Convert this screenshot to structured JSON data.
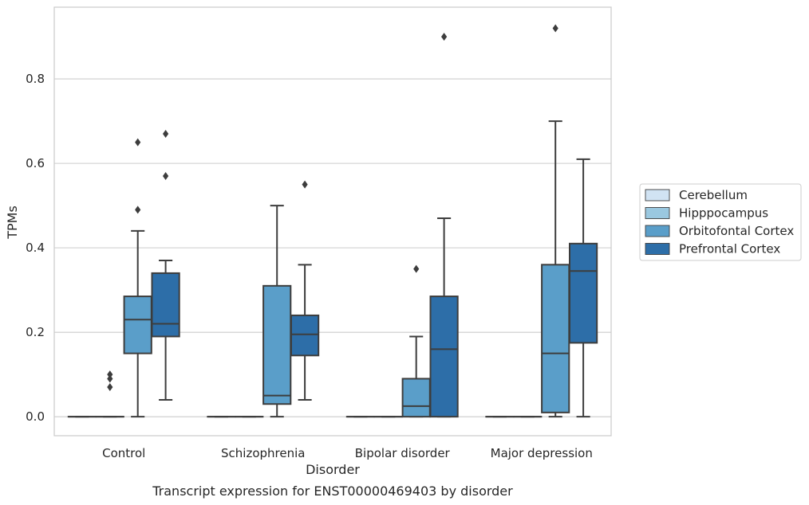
{
  "chart_data": {
    "type": "box",
    "xlabel": "Disorder",
    "ylabel": "TPMs",
    "caption": "Transcript expression for ENST00000469403 by disorder",
    "ylim": [
      -0.045,
      0.97
    ],
    "yticks": [
      0.0,
      0.2,
      0.4,
      0.6,
      0.8
    ],
    "ytick_labels": [
      "0.0",
      "0.2",
      "0.4",
      "0.6",
      "0.8"
    ],
    "grid": "horizontal",
    "legend_position": "right",
    "categories": [
      "Control",
      "Schizophrenia",
      "Bipolar disorder",
      "Major depression"
    ],
    "series": [
      {
        "name": "Cerebellum",
        "color": "#d1e3f3",
        "boxes": [
          {
            "min": 0,
            "q1": 0,
            "median": 0,
            "q3": 0,
            "max": 0,
            "outliers": []
          },
          {
            "min": 0,
            "q1": 0,
            "median": 0,
            "q3": 0,
            "max": 0,
            "outliers": []
          },
          {
            "min": 0,
            "q1": 0,
            "median": 0,
            "q3": 0,
            "max": 0,
            "outliers": []
          },
          {
            "min": 0,
            "q1": 0,
            "median": 0,
            "q3": 0,
            "max": 0,
            "outliers": []
          }
        ]
      },
      {
        "name": "Hipppocampus",
        "color": "#9ac8e0",
        "boxes": [
          {
            "min": 0,
            "q1": 0,
            "median": 0,
            "q3": 0,
            "max": 0,
            "outliers": [
              0.07,
              0.09,
              0.1
            ]
          },
          {
            "min": 0,
            "q1": 0,
            "median": 0,
            "q3": 0,
            "max": 0,
            "outliers": []
          },
          {
            "min": 0,
            "q1": 0,
            "median": 0,
            "q3": 0,
            "max": 0,
            "outliers": []
          },
          {
            "min": 0,
            "q1": 0,
            "median": 0,
            "q3": 0,
            "max": 0,
            "outliers": []
          }
        ]
      },
      {
        "name": "Orbitofontal Cortex",
        "color": "#5a9ec9",
        "boxes": [
          {
            "min": 0,
            "q1": 0.15,
            "median": 0.23,
            "q3": 0.285,
            "max": 0.44,
            "outliers": [
              0.49,
              0.65
            ]
          },
          {
            "min": 0,
            "q1": 0.03,
            "median": 0.05,
            "q3": 0.31,
            "max": 0.5,
            "outliers": []
          },
          {
            "min": 0,
            "q1": 0,
            "median": 0.025,
            "q3": 0.09,
            "max": 0.19,
            "outliers": [
              0.35
            ]
          },
          {
            "min": 0,
            "q1": 0.01,
            "median": 0.15,
            "q3": 0.36,
            "max": 0.7,
            "outliers": [
              0.92
            ]
          }
        ]
      },
      {
        "name": "Prefrontal Cortex",
        "color": "#2d6ea8",
        "boxes": [
          {
            "min": 0.04,
            "q1": 0.19,
            "median": 0.22,
            "q3": 0.34,
            "max": 0.37,
            "outliers": [
              0.57,
              0.67
            ]
          },
          {
            "min": 0.04,
            "q1": 0.145,
            "median": 0.195,
            "q3": 0.24,
            "max": 0.36,
            "outliers": [
              0.55
            ]
          },
          {
            "min": 0,
            "q1": 0,
            "median": 0.16,
            "q3": 0.285,
            "max": 0.47,
            "outliers": [
              0.9
            ]
          },
          {
            "min": 0,
            "q1": 0.175,
            "median": 0.345,
            "q3": 0.41,
            "max": 0.61,
            "outliers": []
          }
        ]
      }
    ]
  }
}
